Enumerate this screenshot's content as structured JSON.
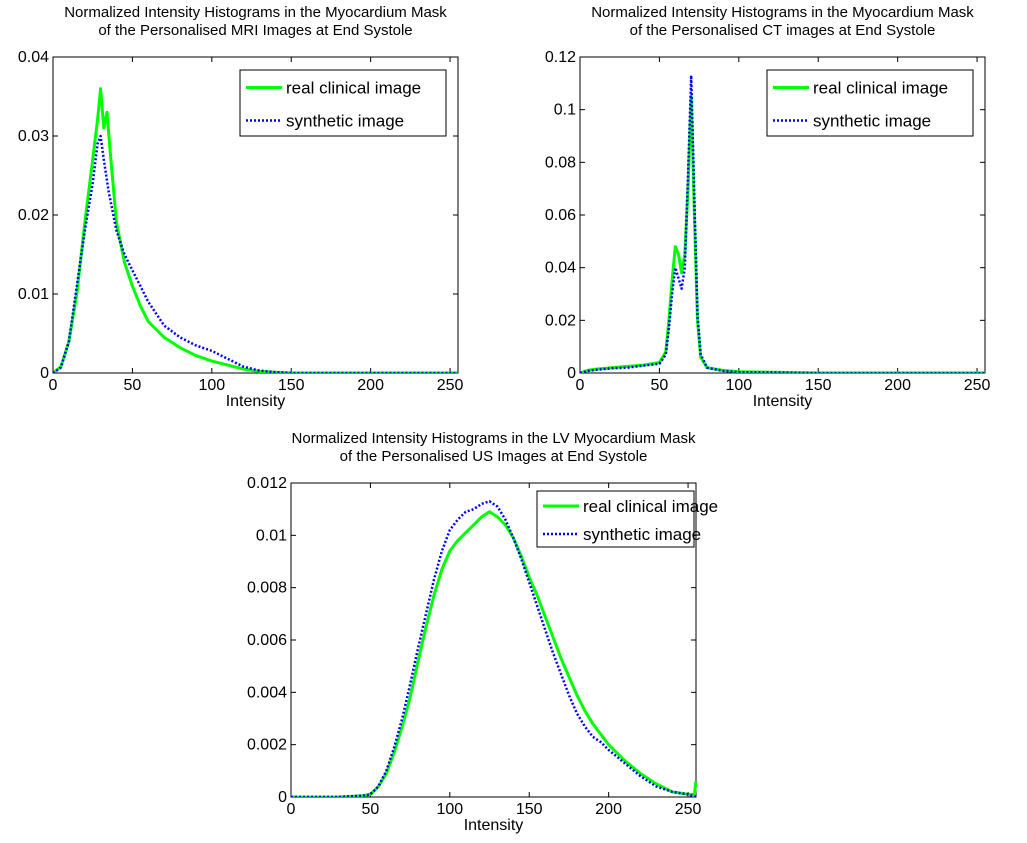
{
  "chart_data": [
    {
      "type": "line",
      "title": [
        "Normalized Intensity Histograms in the Myocardium Mask",
        "of the Personalised MRI Images at End Systole"
      ],
      "xlabel": "Intensity",
      "ylabel": "",
      "xlim": [
        0,
        255
      ],
      "ylim": [
        0,
        0.04
      ],
      "xticks": [
        0,
        50,
        100,
        150,
        200,
        250
      ],
      "yticks": [
        0,
        0.01,
        0.02,
        0.03,
        0.04
      ],
      "ytick_labels": [
        "0",
        "0.01",
        "0.02",
        "0.03",
        "0.04"
      ],
      "legend_position": "top-right",
      "series": [
        {
          "name": "real clinical image",
          "color": "#00ff00",
          "style": "solid",
          "x": [
            0,
            5,
            10,
            15,
            20,
            25,
            28,
            30,
            32,
            34,
            36,
            40,
            45,
            50,
            55,
            60,
            70,
            80,
            90,
            100,
            110,
            120,
            130,
            140,
            150,
            200,
            255
          ],
          "y": [
            0,
            0.0008,
            0.004,
            0.01,
            0.019,
            0.027,
            0.032,
            0.036,
            0.031,
            0.033,
            0.028,
            0.019,
            0.014,
            0.011,
            0.0085,
            0.0065,
            0.0045,
            0.0032,
            0.0022,
            0.0015,
            0.001,
            0.0005,
            0.0002,
            0.0001,
            0,
            0,
            0
          ]
        },
        {
          "name": "synthetic image",
          "color": "#0000ff",
          "style": "dotted",
          "x": [
            0,
            5,
            10,
            15,
            20,
            25,
            28,
            30,
            32,
            35,
            40,
            45,
            50,
            55,
            60,
            70,
            80,
            90,
            100,
            110,
            120,
            130,
            140,
            150,
            200,
            255
          ],
          "y": [
            0,
            0.0007,
            0.004,
            0.011,
            0.018,
            0.024,
            0.029,
            0.03,
            0.027,
            0.023,
            0.018,
            0.015,
            0.013,
            0.011,
            0.009,
            0.006,
            0.0045,
            0.0035,
            0.0028,
            0.0018,
            0.0008,
            0.0003,
            0.0001,
            0,
            0,
            0
          ]
        }
      ]
    },
    {
      "type": "line",
      "title": [
        "Normalized Intensity Histograms in the Myocardium Mask",
        "of the Personalised CT images at End Systole"
      ],
      "xlabel": "Intensity",
      "ylabel": "",
      "xlim": [
        0,
        255
      ],
      "ylim": [
        0,
        0.12
      ],
      "xticks": [
        0,
        50,
        100,
        150,
        200,
        250
      ],
      "yticks": [
        0,
        0.02,
        0.04,
        0.06,
        0.08,
        0.1,
        0.12
      ],
      "ytick_labels": [
        "0",
        "0.02",
        "0.04",
        "0.06",
        "0.08",
        "0.1",
        "0.12"
      ],
      "legend_position": "top-right",
      "series": [
        {
          "name": "real clinical image",
          "color": "#00ff00",
          "style": "solid",
          "x": [
            0,
            5,
            10,
            20,
            30,
            40,
            50,
            54,
            56,
            58,
            60,
            62,
            64,
            66,
            68,
            70,
            72,
            74,
            76,
            80,
            90,
            100,
            150,
            200,
            255
          ],
          "y": [
            0,
            0.001,
            0.0015,
            0.002,
            0.0025,
            0.003,
            0.004,
            0.008,
            0.02,
            0.035,
            0.048,
            0.045,
            0.038,
            0.045,
            0.07,
            0.105,
            0.06,
            0.02,
            0.006,
            0.002,
            0.001,
            0.0005,
            0,
            0,
            0
          ]
        },
        {
          "name": "synthetic image",
          "color": "#0000ff",
          "style": "dotted",
          "x": [
            0,
            5,
            10,
            20,
            30,
            40,
            50,
            54,
            56,
            58,
            60,
            62,
            64,
            66,
            68,
            70,
            72,
            74,
            76,
            80,
            90,
            100,
            150,
            200,
            255
          ],
          "y": [
            0,
            0.0008,
            0.0012,
            0.0018,
            0.002,
            0.0028,
            0.0035,
            0.007,
            0.017,
            0.03,
            0.04,
            0.036,
            0.032,
            0.04,
            0.075,
            0.113,
            0.065,
            0.022,
            0.007,
            0.002,
            0.0008,
            0.0003,
            0,
            0,
            0
          ]
        }
      ]
    },
    {
      "type": "line",
      "title": [
        "Normalized Intensity Histograms in the LV Myocardium Mask",
        "of the Personalised US Images at End Systole"
      ],
      "xlabel": "Intensity",
      "ylabel": "",
      "xlim": [
        0,
        255
      ],
      "ylim": [
        0,
        0.012
      ],
      "xticks": [
        0,
        50,
        100,
        150,
        200,
        250
      ],
      "yticks": [
        0,
        0.002,
        0.004,
        0.006,
        0.008,
        0.01,
        0.012
      ],
      "ytick_labels": [
        "0",
        "0.002",
        "0.004",
        "0.006",
        "0.008",
        "0.01",
        "0.012"
      ],
      "legend_position": "top-right",
      "series": [
        {
          "name": "real clinical image",
          "color": "#00ff00",
          "style": "solid",
          "x": [
            0,
            30,
            45,
            50,
            55,
            60,
            65,
            70,
            75,
            80,
            85,
            90,
            95,
            100,
            105,
            110,
            115,
            120,
            125,
            130,
            135,
            140,
            145,
            150,
            155,
            160,
            165,
            170,
            175,
            180,
            185,
            190,
            195,
            200,
            210,
            220,
            230,
            240,
            250,
            254,
            255
          ],
          "y": [
            0,
            0,
            5e-05,
            0.0001,
            0.0004,
            0.0009,
            0.0017,
            0.0027,
            0.0038,
            0.0052,
            0.0065,
            0.0077,
            0.0087,
            0.0094,
            0.0098,
            0.0101,
            0.0104,
            0.0107,
            0.0109,
            0.0107,
            0.0104,
            0.0099,
            0.0092,
            0.0084,
            0.0077,
            0.0069,
            0.0061,
            0.0053,
            0.0046,
            0.0039,
            0.0033,
            0.0028,
            0.0024,
            0.002,
            0.0014,
            0.0009,
            0.0005,
            0.0002,
            0.0001,
            0.0001,
            0.0006
          ]
        },
        {
          "name": "synthetic image",
          "color": "#0000ff",
          "style": "dotted",
          "x": [
            0,
            30,
            45,
            50,
            55,
            60,
            65,
            70,
            75,
            80,
            85,
            90,
            95,
            100,
            105,
            110,
            115,
            120,
            125,
            130,
            135,
            140,
            145,
            150,
            155,
            160,
            165,
            170,
            175,
            180,
            185,
            190,
            195,
            200,
            210,
            220,
            230,
            240,
            250,
            255
          ],
          "y": [
            0,
            0,
            5e-05,
            0.0001,
            0.0004,
            0.001,
            0.0019,
            0.003,
            0.0043,
            0.0057,
            0.007,
            0.0083,
            0.0094,
            0.0102,
            0.0106,
            0.0109,
            0.011,
            0.0112,
            0.0113,
            0.0111,
            0.0106,
            0.0099,
            0.0091,
            0.0082,
            0.0073,
            0.0064,
            0.0055,
            0.0047,
            0.0039,
            0.0032,
            0.0027,
            0.0023,
            0.0021,
            0.0018,
            0.0013,
            0.0008,
            0.0004,
            0.0002,
            0.0001,
            0
          ]
        }
      ]
    }
  ]
}
